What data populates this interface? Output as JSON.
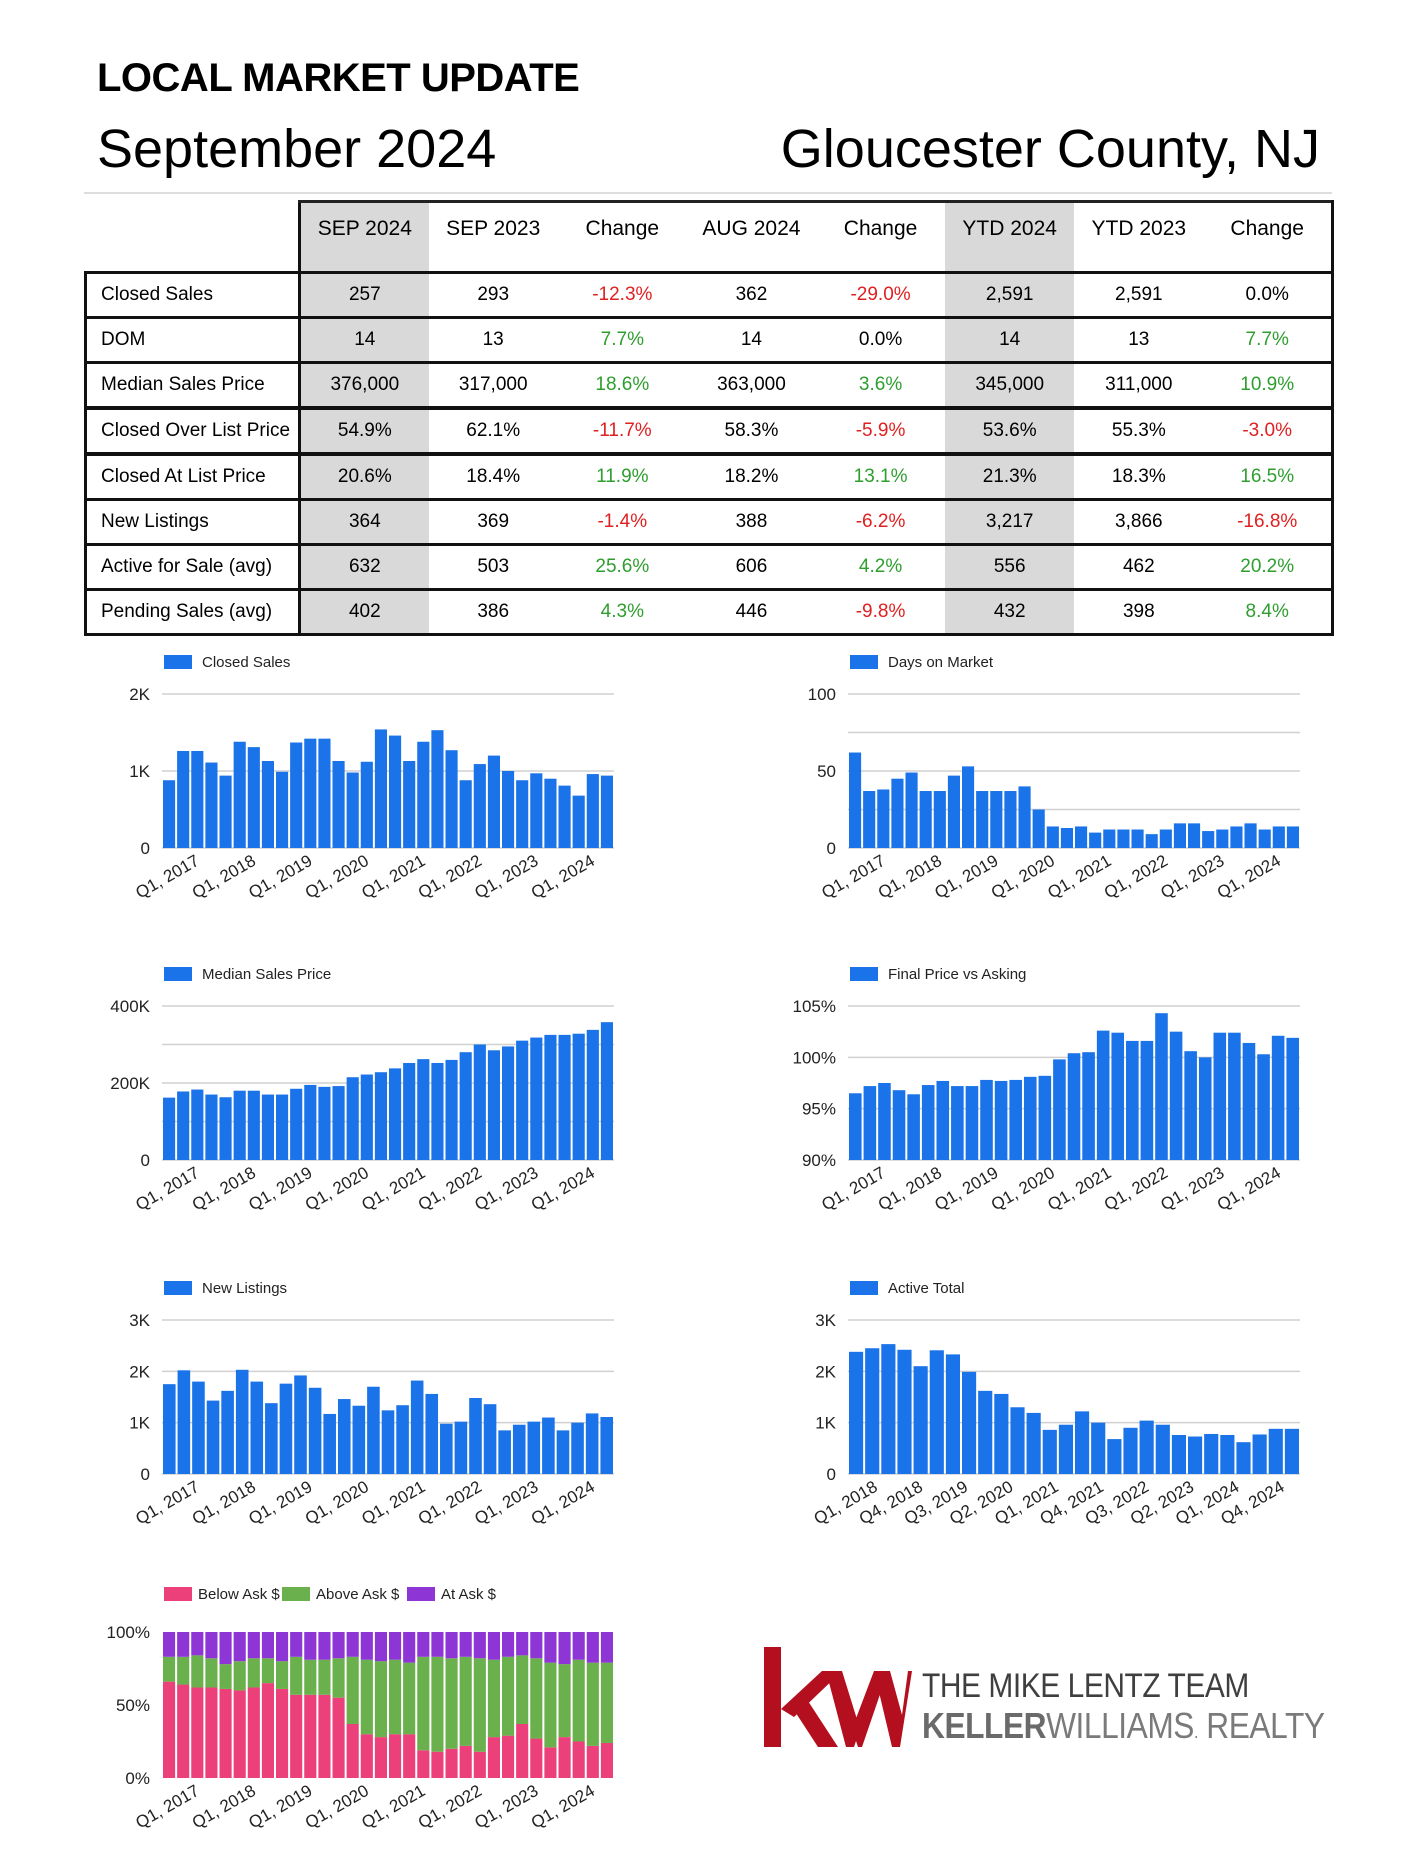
{
  "header": {
    "title": "LOCAL MARKET UPDATE",
    "month": "September 2024",
    "location": "Gloucester County, NJ"
  },
  "table": {
    "columns": [
      "SEP 2024",
      "SEP 2023",
      "Change",
      "AUG 2024",
      "Change",
      "YTD 2024",
      "YTD 2023",
      "Change"
    ],
    "rows": [
      {
        "label": "Closed Sales",
        "cells": [
          "257",
          "293",
          "-12.3%",
          "362",
          "-29.0%",
          "2,591",
          "2,591",
          "0.0%"
        ]
      },
      {
        "label": "DOM",
        "cells": [
          "14",
          "13",
          "7.7%",
          "14",
          "0.0%",
          "14",
          "13",
          "7.7%"
        ]
      },
      {
        "label": "Median Sales Price",
        "cells": [
          "376,000",
          "317,000",
          "18.6%",
          "363,000",
          "3.6%",
          "345,000",
          "311,000",
          "10.9%"
        ]
      },
      {
        "label": "Closed Over List Price",
        "cells": [
          "54.9%",
          "62.1%",
          "-11.7%",
          "58.3%",
          "-5.9%",
          "53.6%",
          "55.3%",
          "-3.0%"
        ]
      },
      {
        "label": "Closed At List Price",
        "cells": [
          "20.6%",
          "18.4%",
          "11.9%",
          "18.2%",
          "13.1%",
          "21.3%",
          "18.3%",
          "16.5%"
        ]
      },
      {
        "label": "New Listings",
        "cells": [
          "364",
          "369",
          "-1.4%",
          "388",
          "-6.2%",
          "3,217",
          "3,866",
          "-16.8%"
        ]
      },
      {
        "label": "Active for Sale (avg)",
        "cells": [
          "632",
          "503",
          "25.6%",
          "606",
          "4.2%",
          "556",
          "462",
          "20.2%"
        ]
      },
      {
        "label": "Pending Sales (avg)",
        "cells": [
          "402",
          "386",
          "4.3%",
          "446",
          "-9.8%",
          "432",
          "398",
          "8.4%"
        ]
      }
    ],
    "change_colors": {
      "positive": "#2e9e2e",
      "negative": "#e02020",
      "neutral": "#000000"
    }
  },
  "chart_data": [
    {
      "type": "bar",
      "title": "Closed Sales",
      "series": [
        {
          "name": "Closed Sales",
          "color": "#1a73e8",
          "values": [
            880,
            1260,
            1260,
            1110,
            940,
            1380,
            1310,
            1130,
            990,
            1370,
            1420,
            1420,
            1130,
            980,
            1120,
            1540,
            1460,
            1130,
            1380,
            1530,
            1270,
            880,
            1090,
            1200,
            1000,
            880,
            970,
            900,
            810,
            680,
            960,
            940
          ]
        }
      ],
      "x_tick_labels": [
        "Q1, 2017",
        "Q1, 2018",
        "Q1, 2019",
        "Q1, 2020",
        "Q1, 2021",
        "Q1, 2022",
        "Q1, 2023",
        "Q1, 2024"
      ],
      "y_tick_labels": [
        "0",
        "1K",
        "2K"
      ],
      "ylim": [
        0,
        2000
      ],
      "y_ticks": [
        0,
        1000,
        2000
      ],
      "grid": true,
      "legend": "top-left"
    },
    {
      "type": "bar",
      "title": "Days on Market",
      "series": [
        {
          "name": "Days on Market",
          "color": "#1a73e8",
          "values": [
            62,
            37,
            38,
            45,
            49,
            37,
            37,
            47,
            53,
            37,
            37,
            37,
            40,
            25,
            14,
            13,
            14,
            10,
            12,
            12,
            12,
            9,
            12,
            16,
            16,
            11,
            12,
            14,
            16,
            12,
            14,
            14
          ]
        }
      ],
      "x_tick_labels": [
        "Q1, 2017",
        "Q1, 2018",
        "Q1, 2019",
        "Q1, 2020",
        "Q1, 2021",
        "Q1, 2022",
        "Q1, 2023",
        "Q1, 2024"
      ],
      "y_tick_labels": [
        "0",
        "50",
        "100"
      ],
      "ylim": [
        0,
        100
      ],
      "y_ticks": [
        0,
        25,
        50,
        75,
        100
      ],
      "grid": true,
      "legend": "top-left"
    },
    {
      "type": "bar",
      "title": "Median Sales Price",
      "series": [
        {
          "name": "Median Sales Price",
          "color": "#1a73e8",
          "values": [
            162000,
            178000,
            183000,
            170000,
            163000,
            180000,
            180000,
            170000,
            170000,
            185000,
            195000,
            190000,
            192000,
            215000,
            222000,
            228000,
            238000,
            252000,
            262000,
            252000,
            260000,
            280000,
            300000,
            285000,
            295000,
            310000,
            318000,
            325000,
            325000,
            328000,
            338000,
            358000
          ]
        }
      ],
      "x_tick_labels": [
        "Q1, 2017",
        "Q1, 2018",
        "Q1, 2019",
        "Q1, 2020",
        "Q1, 2021",
        "Q1, 2022",
        "Q1, 2023",
        "Q1, 2024"
      ],
      "y_tick_labels": [
        "0",
        "200K",
        "400K"
      ],
      "ylim": [
        0,
        400000
      ],
      "y_ticks": [
        0,
        100000,
        200000,
        300000,
        400000
      ],
      "grid": true,
      "legend": "top-left"
    },
    {
      "type": "bar",
      "title": "Final Price vs Asking",
      "series": [
        {
          "name": "Final Price vs Asking",
          "color": "#1a73e8",
          "values": [
            96.5,
            97.2,
            97.5,
            96.8,
            96.4,
            97.3,
            97.7,
            97.2,
            97.2,
            97.8,
            97.7,
            97.8,
            98.1,
            98.2,
            99.8,
            100.4,
            100.5,
            102.6,
            102.4,
            101.6,
            101.6,
            104.3,
            102.5,
            100.6,
            100.0,
            102.4,
            102.4,
            101.4,
            100.3,
            102.1,
            101.9
          ]
        }
      ],
      "x_tick_labels": [
        "Q1, 2017",
        "Q1, 2018",
        "Q1, 2019",
        "Q1, 2020",
        "Q1, 2021",
        "Q1, 2022",
        "Q1, 2023",
        "Q1, 2024"
      ],
      "y_tick_labels": [
        "90%",
        "95%",
        "100%",
        "105%"
      ],
      "ylim": [
        90,
        105
      ],
      "y_ticks": [
        90,
        95,
        100,
        105
      ],
      "grid": true,
      "legend": "top-left"
    },
    {
      "type": "bar",
      "title": "New Listings",
      "series": [
        {
          "name": "New Listings",
          "color": "#1a73e8",
          "values": [
            1750,
            2020,
            1800,
            1430,
            1620,
            2030,
            1800,
            1380,
            1760,
            1920,
            1680,
            1170,
            1460,
            1330,
            1700,
            1240,
            1340,
            1820,
            1560,
            980,
            1020,
            1480,
            1360,
            850,
            960,
            1020,
            1100,
            850,
            1000,
            1180,
            1110
          ]
        }
      ],
      "x_tick_labels": [
        "Q1, 2017",
        "Q1, 2018",
        "Q1, 2019",
        "Q1, 2020",
        "Q1, 2021",
        "Q1, 2022",
        "Q1, 2023",
        "Q1, 2024"
      ],
      "y_tick_labels": [
        "0",
        "1K",
        "2K",
        "3K"
      ],
      "ylim": [
        0,
        3000
      ],
      "y_ticks": [
        0,
        1000,
        2000,
        3000
      ],
      "grid": true,
      "legend": "top-left"
    },
    {
      "type": "bar",
      "title": "Active Total",
      "series": [
        {
          "name": "Active Total",
          "color": "#1a73e8",
          "values": [
            2380,
            2450,
            2530,
            2420,
            2100,
            2410,
            2330,
            1990,
            1620,
            1560,
            1300,
            1190,
            860,
            960,
            1220,
            1000,
            680,
            900,
            1040,
            960,
            760,
            730,
            780,
            760,
            620,
            770,
            880,
            880
          ]
        }
      ],
      "x_tick_labels": [
        "Q1, 2018",
        "Q4, 2018",
        "Q3, 2019",
        "Q2, 2020",
        "Q1, 2021",
        "Q4, 2021",
        "Q3, 2022",
        "Q2, 2023",
        "Q1, 2024",
        "Q4, 2024"
      ],
      "y_tick_labels": [
        "0",
        "1K",
        "2K",
        "3K"
      ],
      "ylim": [
        0,
        3000
      ],
      "y_ticks": [
        0,
        1000,
        2000,
        3000
      ],
      "grid": true,
      "legend": "top-left"
    },
    {
      "type": "bar",
      "stacked": "percent",
      "series": [
        {
          "name": "Below Ask $",
          "color": "#ec407a",
          "values": [
            66,
            64,
            62,
            62,
            61,
            60,
            62,
            65,
            61,
            57,
            57,
            57,
            55,
            37,
            30,
            28,
            30,
            30,
            19,
            18,
            20,
            22,
            18,
            28,
            29,
            37,
            27,
            21,
            28,
            25,
            22,
            24
          ]
        },
        {
          "name": "Above Ask $",
          "color": "#6ab04c",
          "values": [
            17,
            19,
            22,
            20,
            17,
            20,
            20,
            17,
            19,
            26,
            24,
            24,
            27,
            46,
            51,
            52,
            51,
            49,
            64,
            65,
            62,
            61,
            64,
            53,
            54,
            47,
            55,
            58,
            50,
            56,
            57,
            55
          ]
        },
        {
          "name": "At Ask $",
          "color": "#8e35d6",
          "values": [
            17,
            17,
            16,
            18,
            22,
            20,
            18,
            18,
            20,
            17,
            19,
            19,
            18,
            17,
            19,
            20,
            19,
            21,
            17,
            17,
            18,
            17,
            18,
            19,
            17,
            16,
            18,
            21,
            22,
            19,
            21,
            21
          ]
        }
      ],
      "x_tick_labels": [
        "Q1, 2017",
        "Q1, 2018",
        "Q1, 2019",
        "Q1, 2020",
        "Q1, 2021",
        "Q1, 2022",
        "Q1, 2023",
        "Q1, 2024"
      ],
      "y_tick_labels": [
        "0%",
        "50%",
        "100%"
      ],
      "ylim": [
        0,
        100
      ],
      "y_ticks": [
        0,
        50,
        100
      ],
      "grid": false,
      "legend": "top"
    }
  ],
  "logo": {
    "team": "THE MIKE LENTZ TEAM",
    "brand_bold": "KELLER",
    "brand_rest": "WILLIAMS",
    "brand_mark": ".",
    "brand_tail": " REALTY",
    "mark_text": "kw",
    "mark_color": "#b40f1e"
  }
}
